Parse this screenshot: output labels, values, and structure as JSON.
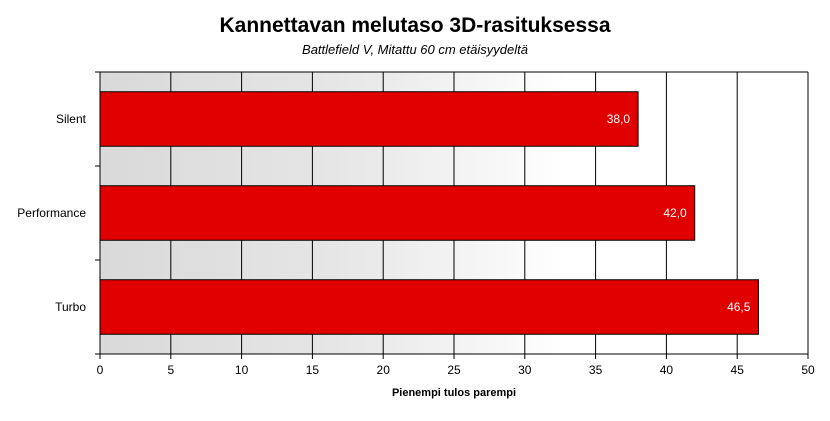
{
  "chart_data": {
    "type": "bar",
    "orientation": "horizontal",
    "title": "Kannettavan melutaso 3D-rasituksessa",
    "subtitle": "Battlefield V, Mitattu 60 cm etäisyydeltä",
    "xlabel": "Pienempi tulos parempi",
    "ylabel": "",
    "categories": [
      "Silent",
      "Performance",
      "Turbo"
    ],
    "values": [
      38.0,
      42.0,
      46.5
    ],
    "value_labels": [
      "38,0",
      "42,0",
      "46,5"
    ],
    "xlim": [
      0,
      50
    ],
    "xticks": [
      0,
      5,
      10,
      15,
      20,
      25,
      30,
      35,
      40,
      45,
      50
    ],
    "grid": true,
    "legend": "none",
    "colors": {
      "bar": "#e00000",
      "bar_border": "#000000",
      "grid": "#000000",
      "plot_bg_start": "#d9d9d9",
      "plot_bg_end": "#ffffff"
    }
  }
}
